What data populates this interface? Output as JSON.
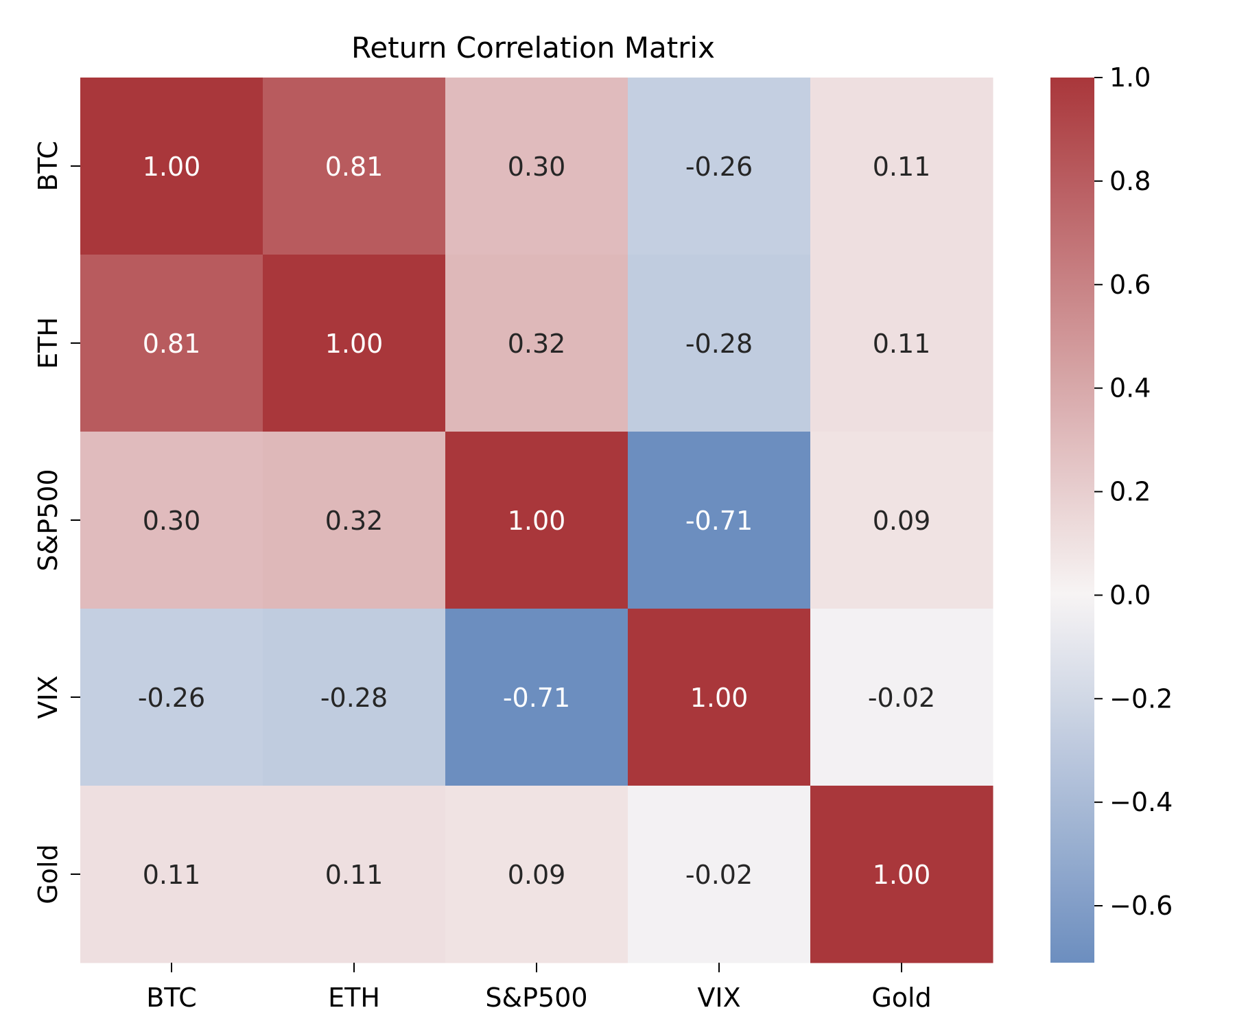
{
  "chart_data": {
    "type": "heatmap",
    "title": "Return Correlation Matrix",
    "xlabel": "",
    "ylabel": "",
    "x_categories": [
      "BTC",
      "ETH",
      "S&P500",
      "VIX",
      "Gold"
    ],
    "y_categories": [
      "BTC",
      "ETH",
      "S&P500",
      "VIX",
      "Gold"
    ],
    "values": [
      [
        1.0,
        0.81,
        0.3,
        -0.26,
        0.11
      ],
      [
        0.81,
        1.0,
        0.32,
        -0.28,
        0.11
      ],
      [
        0.3,
        0.32,
        1.0,
        -0.71,
        0.09
      ],
      [
        -0.26,
        -0.28,
        -0.71,
        1.0,
        -0.02
      ],
      [
        0.11,
        0.11,
        0.09,
        -0.02,
        1.0
      ]
    ],
    "annotation_format": "0.00",
    "colorbar": {
      "range": [
        -0.71,
        1.0
      ],
      "ticks": [
        1.0,
        0.8,
        0.6,
        0.4,
        0.2,
        0.0,
        -0.2,
        -0.4,
        -0.6
      ],
      "tick_labels": [
        "1.0",
        "0.8",
        "0.6",
        "0.4",
        "0.2",
        "0.0",
        "−0.2",
        "−0.4",
        "−0.6"
      ]
    },
    "colors": {
      "negative": "#6c8ebf",
      "neutral": "#f7f4f4",
      "positive": "#a9373b",
      "text_dark": "#262626",
      "text_light": "#ffffff"
    }
  }
}
